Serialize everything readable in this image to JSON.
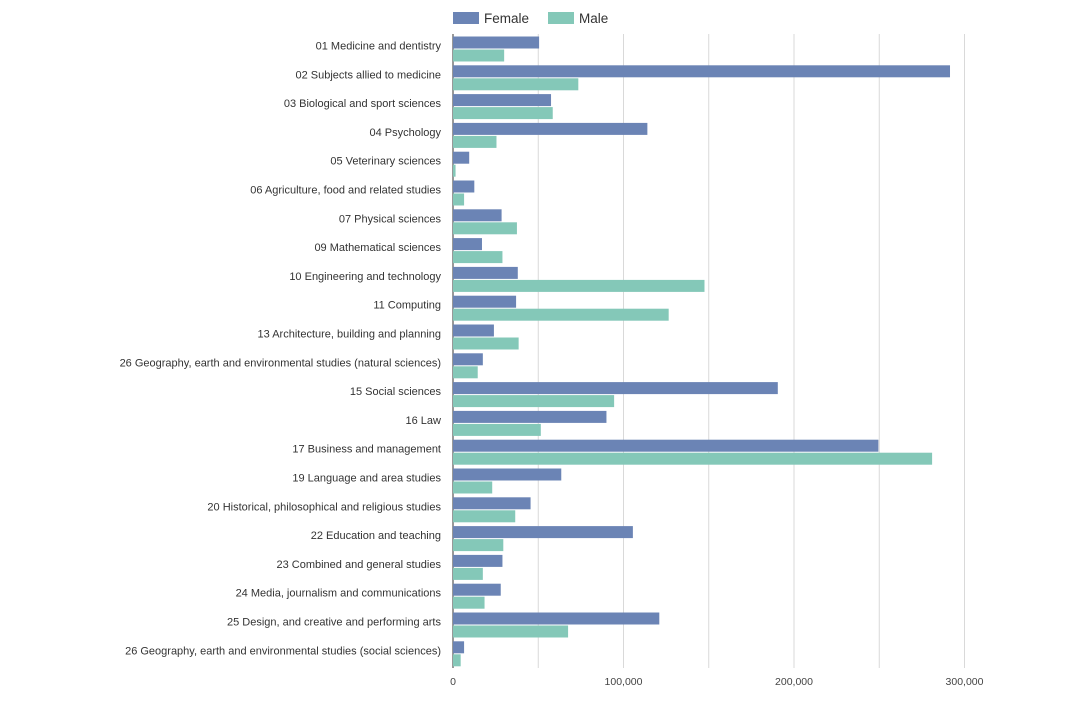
{
  "chart_data": {
    "type": "bar",
    "orientation": "horizontal",
    "title": "",
    "xlabel": "",
    "ylabel": "",
    "xlim": [
      0,
      300000
    ],
    "x_ticks": [
      0,
      100000,
      200000,
      300000
    ],
    "x_tick_labels": [
      "0",
      "100,000",
      "200,000",
      "300,000"
    ],
    "grid": true,
    "legend_position": "top-left",
    "categories": [
      "01 Medicine and dentistry",
      "02 Subjects allied to medicine",
      "03 Biological and sport sciences",
      "04 Psychology",
      "05 Veterinary sciences",
      "06 Agriculture, food and related studies",
      "07 Physical sciences",
      "09 Mathematical sciences",
      "10 Engineering and technology",
      "11 Computing",
      "13 Architecture, building and planning",
      "26 Geography, earth and environmental studies (natural sciences)",
      "15 Social sciences",
      "16 Law",
      "17 Business and management",
      "19 Language and area studies",
      "20 Historical, philosophical and religious studies",
      "22 Education and teaching",
      "23 Combined and general studies",
      "24 Media, journalism and communications",
      "25 Design, and creative and performing arts",
      "26 Geography, earth and environmental studies (social sciences)"
    ],
    "series": [
      {
        "name": "Female",
        "color": "#6b84b5",
        "values": [
          50500,
          291500,
          57500,
          114000,
          9500,
          12500,
          28500,
          17000,
          38000,
          37000,
          24000,
          17500,
          190500,
          90000,
          249500,
          63500,
          45500,
          105500,
          29000,
          28000,
          121000,
          6500
        ]
      },
      {
        "name": "Male",
        "color": "#84c8b8",
        "values": [
          30000,
          73500,
          58500,
          25500,
          1500,
          6500,
          37500,
          29000,
          147500,
          126500,
          38500,
          14500,
          94500,
          51500,
          281000,
          23000,
          36500,
          29500,
          17500,
          18500,
          67500,
          4500
        ]
      }
    ]
  }
}
